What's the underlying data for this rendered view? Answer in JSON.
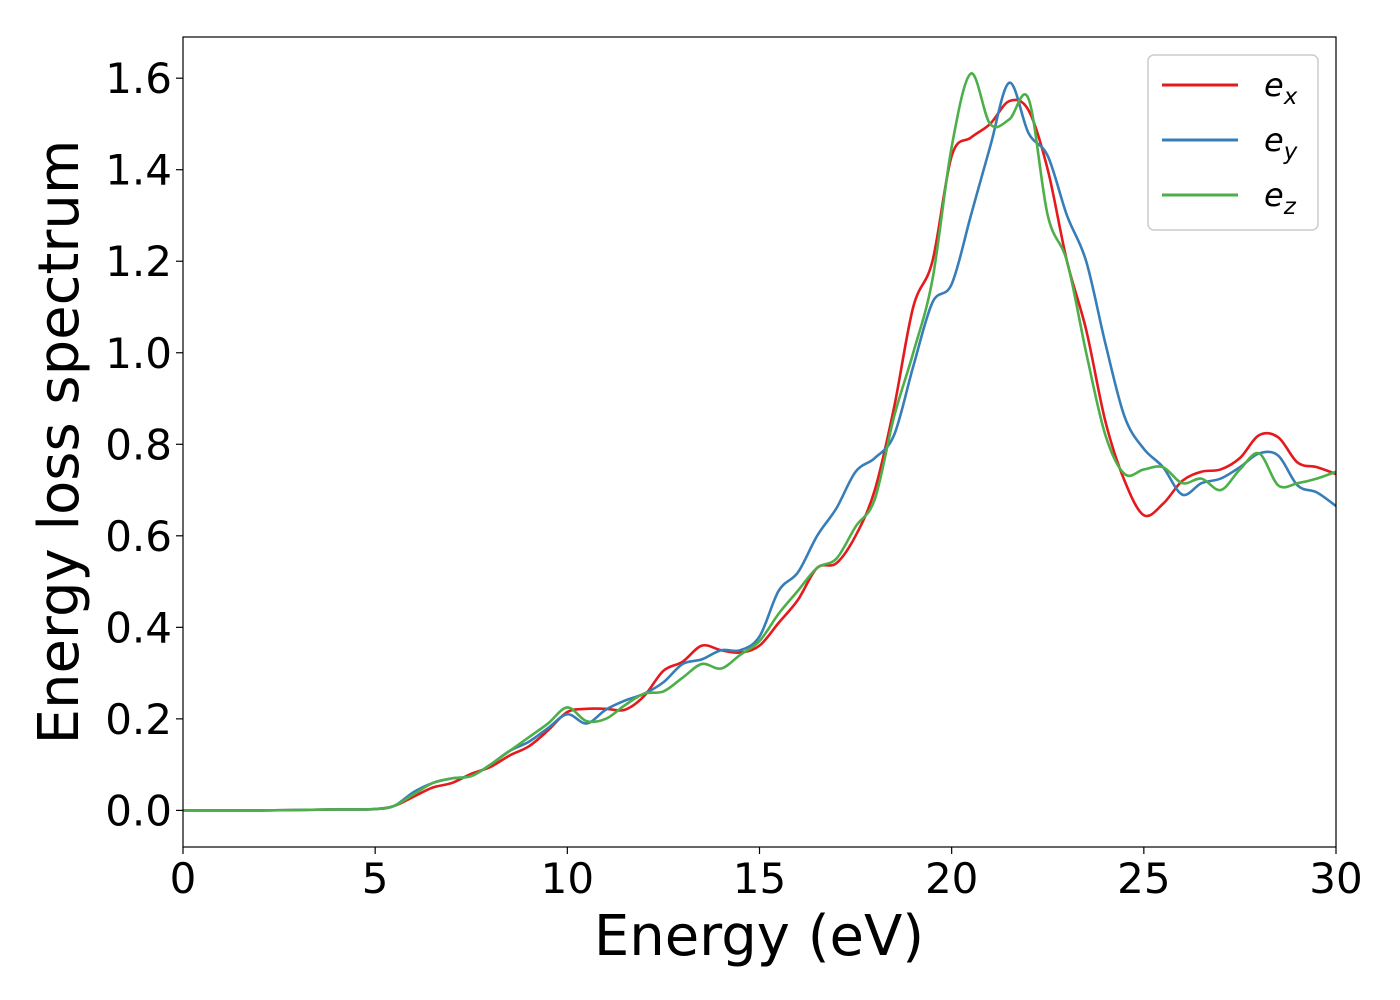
{
  "chart_data": {
    "type": "line",
    "title": "",
    "xlabel": "Energy (eV)",
    "ylabel": "Energy loss spectrum",
    "xlim": [
      0,
      30
    ],
    "ylim": [
      -0.08,
      1.69
    ],
    "xticks": [
      0,
      5,
      10,
      15,
      20,
      25,
      30
    ],
    "yticks": [
      0.0,
      0.2,
      0.4,
      0.6,
      0.8,
      1.0,
      1.2,
      1.4,
      1.6
    ],
    "xtick_labels": [
      "0",
      "5",
      "10",
      "15",
      "20",
      "25",
      "30"
    ],
    "ytick_labels": [
      "0.0",
      "0.2",
      "0.4",
      "0.6",
      "0.8",
      "1.0",
      "1.2",
      "1.4",
      "1.6"
    ],
    "grid": false,
    "legend_position": "top-right",
    "series": [
      {
        "name": "e_x",
        "legend_base": "e",
        "legend_sub": "x",
        "color": "#e41a1c",
        "points": [
          [
            0,
            0
          ],
          [
            2,
            0
          ],
          [
            4,
            0.002
          ],
          [
            5,
            0.003
          ],
          [
            5.5,
            0.01
          ],
          [
            6,
            0.03
          ],
          [
            6.5,
            0.05
          ],
          [
            7,
            0.06
          ],
          [
            7.5,
            0.08
          ],
          [
            8,
            0.095
          ],
          [
            8.5,
            0.12
          ],
          [
            9,
            0.14
          ],
          [
            9.5,
            0.175
          ],
          [
            10,
            0.215
          ],
          [
            10.5,
            0.222
          ],
          [
            11,
            0.222
          ],
          [
            11.5,
            0.22
          ],
          [
            12,
            0.25
          ],
          [
            12.5,
            0.305
          ],
          [
            13,
            0.325
          ],
          [
            13.5,
            0.36
          ],
          [
            14,
            0.35
          ],
          [
            14.5,
            0.345
          ],
          [
            15,
            0.36
          ],
          [
            15.5,
            0.41
          ],
          [
            16,
            0.46
          ],
          [
            16.5,
            0.53
          ],
          [
            17,
            0.54
          ],
          [
            17.5,
            0.6
          ],
          [
            18,
            0.7
          ],
          [
            18.5,
            0.88
          ],
          [
            19,
            1.1
          ],
          [
            19.5,
            1.2
          ],
          [
            20,
            1.43
          ],
          [
            20.5,
            1.47
          ],
          [
            21,
            1.5
          ],
          [
            21.5,
            1.55
          ],
          [
            22,
            1.53
          ],
          [
            22.5,
            1.4
          ],
          [
            23,
            1.2
          ],
          [
            23.5,
            1.05
          ],
          [
            24,
            0.85
          ],
          [
            24.5,
            0.72
          ],
          [
            25,
            0.645
          ],
          [
            25.5,
            0.67
          ],
          [
            26,
            0.72
          ],
          [
            26.5,
            0.74
          ],
          [
            27,
            0.745
          ],
          [
            27.5,
            0.77
          ],
          [
            28,
            0.82
          ],
          [
            28.5,
            0.815
          ],
          [
            29,
            0.76
          ],
          [
            29.5,
            0.75
          ],
          [
            30,
            0.735
          ]
        ]
      },
      {
        "name": "e_y",
        "legend_base": "e",
        "legend_sub": "y",
        "color": "#377eb8",
        "points": [
          [
            0,
            0
          ],
          [
            2,
            0
          ],
          [
            4,
            0.002
          ],
          [
            5,
            0.003
          ],
          [
            5.5,
            0.01
          ],
          [
            6,
            0.04
          ],
          [
            6.5,
            0.06
          ],
          [
            7,
            0.07
          ],
          [
            7.5,
            0.075
          ],
          [
            8,
            0.1
          ],
          [
            8.5,
            0.13
          ],
          [
            9,
            0.15
          ],
          [
            9.5,
            0.18
          ],
          [
            10,
            0.21
          ],
          [
            10.5,
            0.19
          ],
          [
            11,
            0.22
          ],
          [
            11.5,
            0.24
          ],
          [
            12,
            0.255
          ],
          [
            12.5,
            0.28
          ],
          [
            13,
            0.32
          ],
          [
            13.5,
            0.33
          ],
          [
            14,
            0.35
          ],
          [
            14.5,
            0.35
          ],
          [
            15,
            0.38
          ],
          [
            15.5,
            0.48
          ],
          [
            16,
            0.52
          ],
          [
            16.5,
            0.6
          ],
          [
            17,
            0.66
          ],
          [
            17.5,
            0.74
          ],
          [
            18,
            0.77
          ],
          [
            18.5,
            0.82
          ],
          [
            19,
            0.97
          ],
          [
            19.5,
            1.11
          ],
          [
            20,
            1.15
          ],
          [
            20.5,
            1.3
          ],
          [
            21,
            1.45
          ],
          [
            21.5,
            1.59
          ],
          [
            22,
            1.48
          ],
          [
            22.5,
            1.43
          ],
          [
            23,
            1.3
          ],
          [
            23.5,
            1.2
          ],
          [
            24,
            1.02
          ],
          [
            24.5,
            0.86
          ],
          [
            25,
            0.79
          ],
          [
            25.5,
            0.75
          ],
          [
            26,
            0.69
          ],
          [
            26.5,
            0.715
          ],
          [
            27,
            0.725
          ],
          [
            27.5,
            0.75
          ],
          [
            28,
            0.78
          ],
          [
            28.5,
            0.775
          ],
          [
            29,
            0.71
          ],
          [
            29.5,
            0.695
          ],
          [
            30,
            0.665
          ]
        ]
      },
      {
        "name": "e_z",
        "legend_base": "e",
        "legend_sub": "z",
        "color": "#4daf4a",
        "points": [
          [
            0,
            0
          ],
          [
            2,
            0
          ],
          [
            4,
            0.002
          ],
          [
            5,
            0.003
          ],
          [
            5.5,
            0.01
          ],
          [
            6,
            0.035
          ],
          [
            6.5,
            0.06
          ],
          [
            7,
            0.07
          ],
          [
            7.5,
            0.075
          ],
          [
            8,
            0.1
          ],
          [
            8.5,
            0.13
          ],
          [
            9,
            0.16
          ],
          [
            9.5,
            0.19
          ],
          [
            10,
            0.225
          ],
          [
            10.5,
            0.195
          ],
          [
            11,
            0.2
          ],
          [
            11.5,
            0.23
          ],
          [
            12,
            0.255
          ],
          [
            12.5,
            0.26
          ],
          [
            13,
            0.29
          ],
          [
            13.5,
            0.32
          ],
          [
            14,
            0.31
          ],
          [
            14.5,
            0.34
          ],
          [
            15,
            0.37
          ],
          [
            15.5,
            0.43
          ],
          [
            16,
            0.48
          ],
          [
            16.5,
            0.53
          ],
          [
            17,
            0.55
          ],
          [
            17.5,
            0.62
          ],
          [
            18,
            0.68
          ],
          [
            18.5,
            0.86
          ],
          [
            19,
            1.0
          ],
          [
            19.5,
            1.16
          ],
          [
            20,
            1.45
          ],
          [
            20.5,
            1.61
          ],
          [
            21,
            1.5
          ],
          [
            21.5,
            1.51
          ],
          [
            22,
            1.555
          ],
          [
            22.5,
            1.3
          ],
          [
            23,
            1.2
          ],
          [
            23.5,
            1.0
          ],
          [
            24,
            0.82
          ],
          [
            24.5,
            0.735
          ],
          [
            25,
            0.745
          ],
          [
            25.5,
            0.75
          ],
          [
            26,
            0.715
          ],
          [
            26.5,
            0.725
          ],
          [
            27,
            0.7
          ],
          [
            27.5,
            0.745
          ],
          [
            28,
            0.78
          ],
          [
            28.5,
            0.71
          ],
          [
            29,
            0.715
          ],
          [
            29.5,
            0.725
          ],
          [
            30,
            0.74
          ]
        ]
      }
    ]
  }
}
